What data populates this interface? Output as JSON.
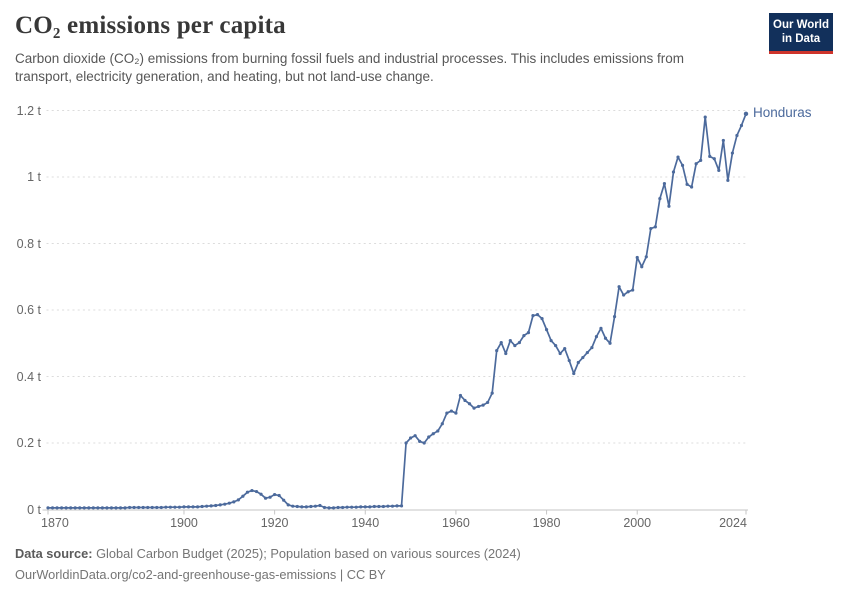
{
  "header": {
    "title": "CO₂ emissions per capita",
    "subtitle": "Carbon dioxide (CO₂) emissions from burning fossil fuels and industrial processes. This includes emissions from transport, electricity generation, and heating, but not land-use change.",
    "logo_line1": "Our World",
    "logo_line2": "in Data"
  },
  "footer": {
    "source_label": "Data source:",
    "source_text": " Global Carbon Budget (2025); Population based on various sources (2024)",
    "link_line": "OurWorldinData.org/co2-and-greenhouse-gas-emissions | CC BY"
  },
  "colors": {
    "line": "#4C6A9C",
    "logo_background": "#12305B",
    "logo_accent": "#CE342B",
    "grid": "#DCDCDC",
    "axis": "#C6C6C6",
    "tick_text": "#666666"
  },
  "chart_data": {
    "type": "line",
    "title": "CO₂ emissions per capita",
    "unit": "t",
    "xlabel": "",
    "ylabel": "",
    "xlim": [
      1870,
      2024
    ],
    "ylim": [
      0,
      1.2
    ],
    "grid": "horizontal-dashed",
    "legend_position": "end-of-line-label",
    "x_start": 1870,
    "x_step": 1,
    "x_ticks": [
      {
        "v": 1870,
        "label": "1870"
      },
      {
        "v": 1900,
        "label": "1900"
      },
      {
        "v": 1920,
        "label": "1920"
      },
      {
        "v": 1940,
        "label": "1940"
      },
      {
        "v": 1960,
        "label": "1960"
      },
      {
        "v": 1980,
        "label": "1980"
      },
      {
        "v": 2000,
        "label": "2000"
      },
      {
        "v": 2024,
        "label": "2024"
      }
    ],
    "y_ticks": [
      {
        "v": 0,
        "label": "0 t"
      },
      {
        "v": 0.2,
        "label": "0.2 t"
      },
      {
        "v": 0.4,
        "label": "0.4 t"
      },
      {
        "v": 0.6,
        "label": "0.6 t"
      },
      {
        "v": 0.8,
        "label": "0.8 t"
      },
      {
        "v": 1,
        "label": "1 t"
      },
      {
        "v": 1.2,
        "label": "1.2 t"
      }
    ],
    "series": [
      {
        "name": "Honduras",
        "color": "#4C6A9C",
        "values": [
          0.005,
          0.005,
          0.005,
          0.005,
          0.005,
          0.005,
          0.005,
          0.005,
          0.005,
          0.005,
          0.005,
          0.005,
          0.005,
          0.005,
          0.005,
          0.005,
          0.005,
          0.005,
          0.006,
          0.006,
          0.006,
          0.006,
          0.006,
          0.006,
          0.006,
          0.006,
          0.007,
          0.007,
          0.007,
          0.007,
          0.008,
          0.008,
          0.008,
          0.008,
          0.009,
          0.01,
          0.011,
          0.012,
          0.014,
          0.016,
          0.019,
          0.023,
          0.029,
          0.04,
          0.052,
          0.057,
          0.054,
          0.046,
          0.034,
          0.037,
          0.045,
          0.042,
          0.028,
          0.014,
          0.01,
          0.009,
          0.008,
          0.008,
          0.009,
          0.01,
          0.012,
          0.006,
          0.005,
          0.005,
          0.006,
          0.006,
          0.007,
          0.007,
          0.007,
          0.008,
          0.008,
          0.008,
          0.009,
          0.009,
          0.009,
          0.01,
          0.01,
          0.011,
          0.011,
          0.2,
          0.215,
          0.222,
          0.205,
          0.2,
          0.218,
          0.228,
          0.236,
          0.258,
          0.29,
          0.296,
          0.29,
          0.343,
          0.328,
          0.318,
          0.305,
          0.31,
          0.314,
          0.322,
          0.35,
          0.478,
          0.502,
          0.469,
          0.508,
          0.493,
          0.502,
          0.523,
          0.532,
          0.583,
          0.586,
          0.574,
          0.541,
          0.508,
          0.493,
          0.469,
          0.484,
          0.448,
          0.409,
          0.442,
          0.457,
          0.472,
          0.487,
          0.52,
          0.545,
          0.515,
          0.5,
          0.58,
          0.67,
          0.645,
          0.655,
          0.66,
          0.758,
          0.73,
          0.76,
          0.845,
          0.85,
          0.935,
          0.98,
          0.912,
          1.015,
          1.06,
          1.035,
          0.978,
          0.97,
          1.04,
          1.05,
          1.18,
          1.062,
          1.055,
          1.02,
          1.11,
          0.99,
          1.072,
          1.125,
          1.155,
          1.19
        ]
      }
    ]
  }
}
